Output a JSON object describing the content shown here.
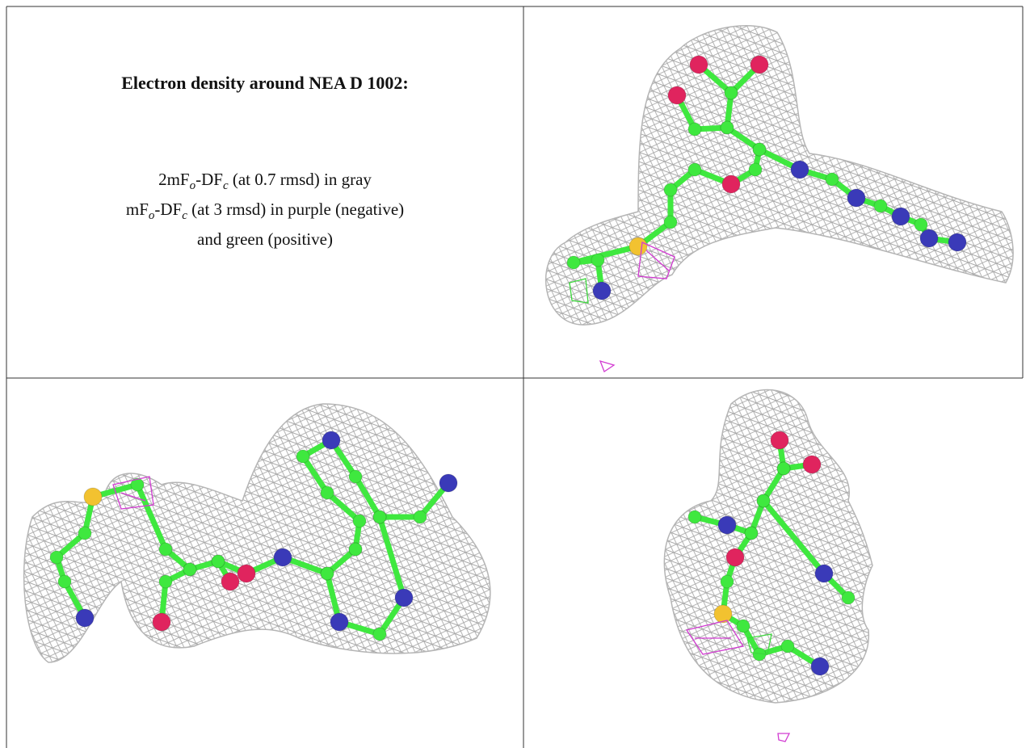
{
  "cell_text": {
    "title": "Electron density around NEA D 1002:",
    "lines": [
      [
        "2mF",
        "o",
        "-DF",
        "c",
        " (at 0.7 rmsd) in gray"
      ],
      [
        "mF",
        "o",
        "-DF",
        "c",
        " (at 3 rmsd) in purple (negative)"
      ],
      [
        "and green (positive)"
      ]
    ]
  }
}
